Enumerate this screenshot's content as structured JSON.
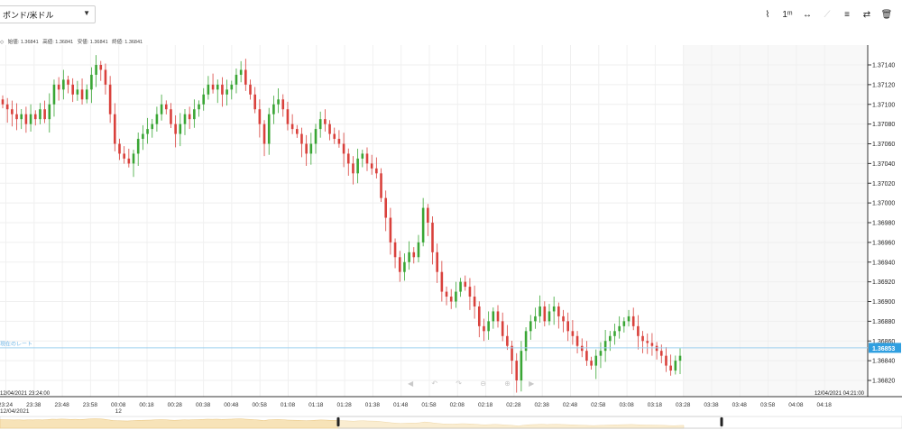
{
  "instrument": {
    "label": "ポンド/米ドル"
  },
  "toolbar": [
    {
      "name": "chart-type-icon",
      "glyph": "⌇",
      "dim": false
    },
    {
      "name": "interval-icon",
      "glyph": "1ᵐ",
      "dim": false
    },
    {
      "name": "crosshair-icon",
      "glyph": "↔",
      "dim": false
    },
    {
      "name": "draw-line-icon",
      "glyph": "⟋",
      "dim": true
    },
    {
      "name": "indicators-icon",
      "glyph": "≡",
      "dim": false
    },
    {
      "name": "compare-icon",
      "glyph": "⇄",
      "dim": false
    },
    {
      "name": "trash-icon",
      "glyph": "🗑",
      "dim": false
    }
  ],
  "ohlc": {
    "open": "始値: 1.36841",
    "high": "高値: 1.36841",
    "low": "安値: 1.36841",
    "close": "終値: 1.36841",
    "marker": "◇"
  },
  "current_rate": {
    "label": "現在のレート",
    "value": "1.36853"
  },
  "nav_controls": "◀ ↶ ↷ ⊖ ⊕ ▶",
  "footer": {
    "start_label": "12/04/2021 23:24:00",
    "end_label": "12/04/2021 04:21:00",
    "date_label": "12/04/2021"
  },
  "colors": {
    "up": "#3aa635",
    "down": "#d9413c",
    "rate_line": "#9fd0ef",
    "rate_tag": "#2f9fe0",
    "future_shade": "#f8f8f8"
  },
  "chart_data": {
    "type": "candlestick",
    "x_ticks": [
      "23:24",
      "23:38",
      "23:48",
      "23:58",
      "00:08",
      "00:18",
      "00:28",
      "00:38",
      "00:48",
      "00:58",
      "01:08",
      "01:18",
      "01:28",
      "01:38",
      "01:48",
      "01:58",
      "02:08",
      "02:18",
      "02:28",
      "02:38",
      "02:48",
      "02:58",
      "03:08",
      "03:18",
      "03:28",
      "03:38",
      "03:48",
      "03:58",
      "04:08",
      "04:18"
    ],
    "x_sub_ticks": {
      "00:08": "12"
    },
    "y_ticks": [
      "1.37140",
      "1.37120",
      "1.37100",
      "1.37080",
      "1.37060",
      "1.37040",
      "1.37020",
      "1.37000",
      "1.36980",
      "1.36960",
      "1.36940",
      "1.36920",
      "1.36900",
      "1.36880",
      "1.36860",
      "1.36840",
      "1.36820"
    ],
    "ylim": [
      1.368,
      1.3716
    ],
    "current_rate": 1.36853,
    "closes": [
      1.371,
      1.37095,
      1.3709,
      1.37085,
      1.3709,
      1.3708,
      1.3709,
      1.37085,
      1.37095,
      1.37085,
      1.371,
      1.3712,
      1.37115,
      1.37125,
      1.3712,
      1.3711,
      1.37115,
      1.37105,
      1.37115,
      1.3713,
      1.3714,
      1.37135,
      1.3712,
      1.3709,
      1.3706,
      1.3705,
      1.37045,
      1.3704,
      1.3705,
      1.37065,
      1.3707,
      1.37075,
      1.3708,
      1.3709,
      1.371,
      1.37095,
      1.3708,
      1.3707,
      1.3708,
      1.3709,
      1.37085,
      1.37095,
      1.371,
      1.3711,
      1.3712,
      1.37115,
      1.3712,
      1.3711,
      1.37115,
      1.3712,
      1.3713,
      1.37135,
      1.3712,
      1.3711,
      1.37095,
      1.3708,
      1.3706,
      1.3709,
      1.371,
      1.37105,
      1.37095,
      1.3708,
      1.37075,
      1.3707,
      1.3706,
      1.3705,
      1.3706,
      1.37075,
      1.37085,
      1.3708,
      1.3707,
      1.37065,
      1.3706,
      1.3705,
      1.3704,
      1.3703,
      1.37045,
      1.3705,
      1.3704,
      1.37035,
      1.3703,
      1.37005,
      1.36985,
      1.3696,
      1.36945,
      1.3693,
      1.3694,
      1.3695,
      1.36945,
      1.3696,
      1.36995,
      1.3698,
      1.3695,
      1.3693,
      1.3691,
      1.36905,
      1.369,
      1.3691,
      1.3692,
      1.36915,
      1.36905,
      1.36895,
      1.36875,
      1.3687,
      1.3688,
      1.3689,
      1.3688,
      1.36865,
      1.36855,
      1.3684,
      1.3682,
      1.3685,
      1.3687,
      1.3688,
      1.36885,
      1.36895,
      1.3688,
      1.3689,
      1.36895,
      1.36885,
      1.3688,
      1.3687,
      1.36865,
      1.36855,
      1.3685,
      1.3684,
      1.36835,
      1.36845,
      1.3685,
      1.3686,
      1.36865,
      1.3687,
      1.36875,
      1.3688,
      1.36885,
      1.36875,
      1.36865,
      1.3686,
      1.36858,
      1.36855,
      1.3685,
      1.36845,
      1.36835,
      1.3683,
      1.3684,
      1.36845
    ]
  }
}
